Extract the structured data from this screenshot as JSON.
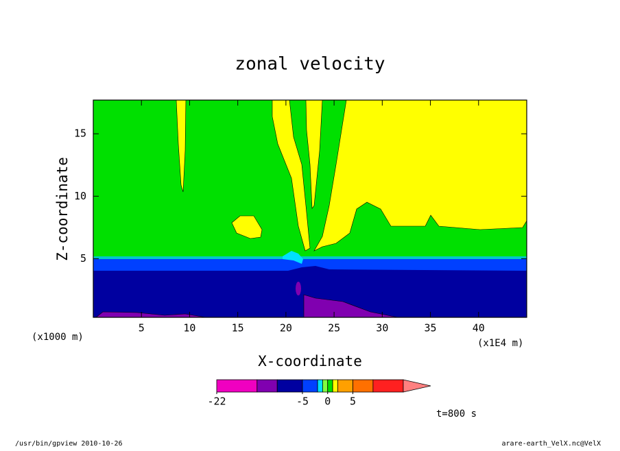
{
  "chart_data": {
    "type": "contour",
    "title": "zonal velocity",
    "xlabel": "X-coordinate",
    "ylabel": "Z-coordinate",
    "x_unit_labels": [
      "(x1000 m)",
      "(x1E4 m)"
    ],
    "xlim": [
      0,
      45
    ],
    "xticks": [
      5,
      10,
      15,
      20,
      25,
      30,
      35,
      40
    ],
    "ylim": [
      0.3,
      17.7
    ],
    "yticks": [
      5,
      10,
      15
    ],
    "colorbar": {
      "levels": [
        -22,
        -14,
        -10,
        -5,
        -2,
        -1,
        0,
        1,
        2,
        5,
        9,
        15
      ],
      "colors": [
        "#f000c0",
        "#8000b0",
        "#0000a0",
        "#0040ff",
        "#00e0ff",
        "#80ff40",
        "#00e000",
        "#ffff00",
        "#ffa000",
        "#ff7000",
        "#ff2020"
      ],
      "extend_color": "#ff8080",
      "ticks": [
        -22,
        -5,
        0,
        5
      ]
    },
    "annotation": "t=800 s",
    "footer_left": "/usr/bin/gpview   2010-10-26",
    "footer_right": "arare-earth_VelX.nc@VelX"
  }
}
